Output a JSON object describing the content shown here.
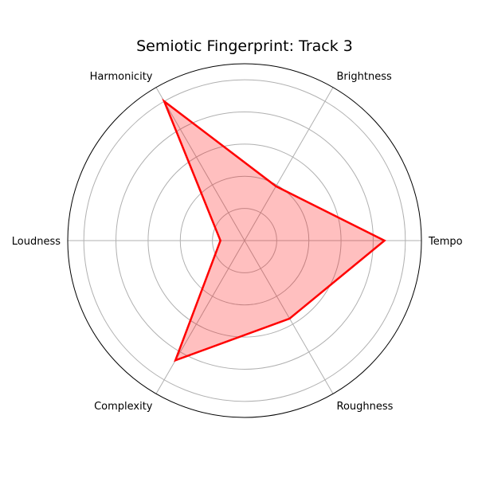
{
  "chart_data": {
    "type": "radar",
    "title": "Semiotic Fingerprint: Track 3",
    "axes": [
      "Tempo",
      "Brightness",
      "Harmonicity",
      "Loudness",
      "Complexity",
      "Roughness"
    ],
    "series": [
      {
        "values": [
          0.87,
          0.39,
          1.0,
          0.15,
          0.86,
          0.56
        ],
        "line_color": "#ff0000",
        "fill_color": "#ff0000",
        "fill_opacity": 0.25
      }
    ],
    "rlim": [
      0,
      1.1
    ],
    "rticks": [
      0.2,
      0.4,
      0.6,
      0.8,
      1.0
    ],
    "radial_tick_labels_visible": false,
    "grid": true,
    "grid_color": "#b0b0b0",
    "frame_color": "#000000"
  }
}
